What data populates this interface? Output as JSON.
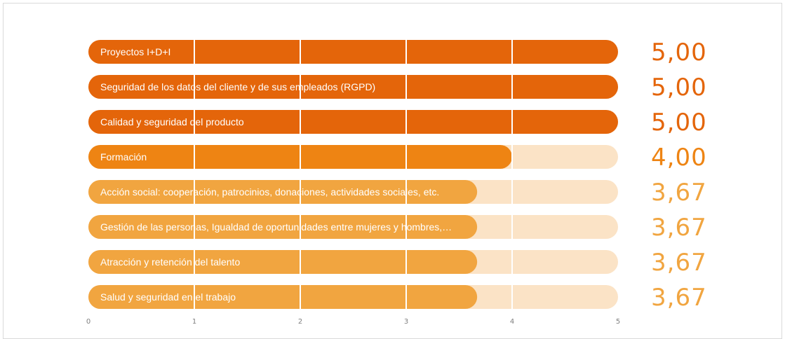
{
  "chart_data": {
    "type": "bar",
    "orientation": "horizontal",
    "categories": [
      "Proyectos I+D+I",
      "Seguridad de los datos del cliente y de sus empleados (RGPD)",
      "Calidad y seguridad del producto",
      "Formación",
      "Acción social: cooperación, patrocinios, donaciones, actividades sociales, etc.",
      "Gestión de las personas, Igualdad de oportunidades entre mujeres y hombres,…",
      "Atracción y retención del talento",
      "Salud y seguridad en el trabajo"
    ],
    "values": [
      5.0,
      5.0,
      5.0,
      4.0,
      3.67,
      3.67,
      3.67,
      3.67
    ],
    "value_labels": [
      "5,00",
      "5,00",
      "5,00",
      "4,00",
      "3,67",
      "3,67",
      "3,67",
      "3,67"
    ],
    "xlim": [
      0,
      5
    ],
    "ticks": [
      "0",
      "1",
      "2",
      "3",
      "4",
      "5"
    ],
    "grid": true,
    "colors": {
      "high": "#e4650a",
      "mid": "#ee8413",
      "low": "#f1a540",
      "track": "#fbe3c6",
      "gridline": "#ffffff",
      "tick_text": "#7f7f7f"
    }
  }
}
